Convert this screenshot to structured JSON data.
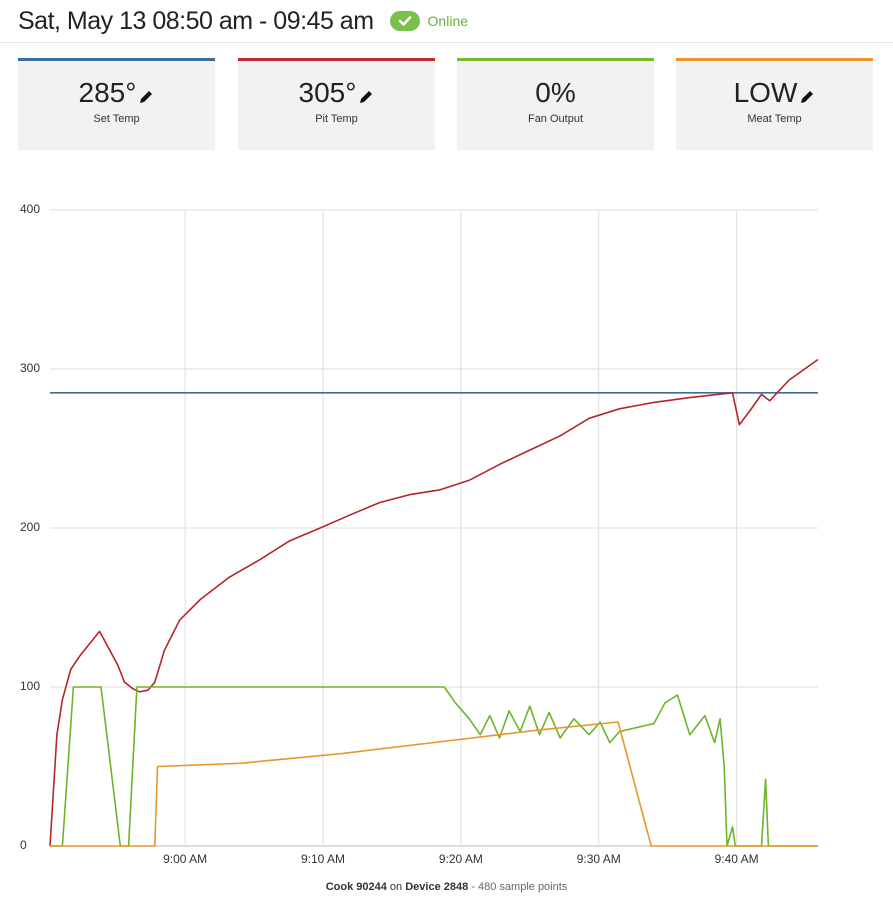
{
  "header": {
    "title": "Sat, May 13 08:50 am - 09:45 am",
    "status": "Online"
  },
  "cards": [
    {
      "value": "285°",
      "label": "Set Temp",
      "color": "#3b6e9c"
    },
    {
      "value": "305°",
      "label": "Pit Temp",
      "color": "#c1272d"
    },
    {
      "value": "0%",
      "label": "Fan Output",
      "color": "#7ab929"
    },
    {
      "value": "LOW",
      "label": "Meat Temp",
      "color": "#e8962b"
    }
  ],
  "chart_data": {
    "type": "line",
    "xlim": [
      530.2,
      585.9
    ],
    "xticks": [
      {
        "value": 540,
        "label": "9:00 AM"
      },
      {
        "value": 550,
        "label": "9:10 AM"
      },
      {
        "value": 560,
        "label": "9:20 AM"
      },
      {
        "value": 570,
        "label": "9:30 AM"
      },
      {
        "value": 580,
        "label": "9:40 AM"
      }
    ],
    "ylim": [
      0,
      400
    ],
    "yticks": [
      0,
      100,
      200,
      300,
      400
    ],
    "grid": true,
    "series": [
      {
        "color": "#3b6e9c",
        "x": [
          530.2,
          585.9
        ],
        "values": [
          285,
          285
        ]
      },
      {
        "color": "#b5262c",
        "x": [
          530.2,
          530.7,
          531.1,
          531.7,
          532.4,
          533.8,
          535.1,
          535.6,
          536.2,
          536.7,
          537.3,
          537.8,
          538.5,
          539.6,
          541.1,
          543.2,
          545.4,
          547.6,
          549.8,
          551.9,
          554.1,
          556.3,
          558.5,
          560.6,
          562.8,
          565.0,
          567.2,
          569.3,
          571.5,
          574.0,
          576.6,
          579.7,
          580.2,
          580.9,
          581.8,
          582.4,
          583.8,
          585.9
        ],
        "values": [
          0,
          70,
          92,
          111,
          120,
          135,
          114,
          103,
          99,
          97,
          98,
          103,
          123,
          142,
          155,
          169,
          180,
          192,
          200,
          208,
          216,
          221,
          224,
          230,
          240,
          249,
          258,
          269,
          275,
          279,
          282,
          285,
          265,
          273,
          284,
          280,
          293,
          306
        ]
      },
      {
        "color": "#6cb52a",
        "x": [
          530.2,
          531.1,
          531.9,
          533.9,
          535.3,
          535.9,
          536.5,
          555.6,
          558.8,
          559.6,
          560.6,
          561.4,
          562.1,
          562.8,
          563.5,
          564.3,
          565.0,
          565.7,
          566.4,
          567.2,
          568.2,
          569.3,
          570.1,
          570.8,
          571.5,
          574.0,
          574.8,
          575.7,
          576.6,
          577.7,
          578.4,
          578.8,
          579.1,
          579.3,
          579.7,
          579.9,
          581.8,
          582.1,
          582.3,
          585.9
        ],
        "values": [
          0,
          0,
          100,
          100,
          0,
          0,
          100,
          100,
          100,
          90,
          80,
          70,
          82,
          68,
          85,
          72,
          88,
          70,
          84,
          68,
          80,
          70,
          78,
          65,
          72,
          77,
          90,
          95,
          70,
          82,
          65,
          80,
          50,
          0,
          12,
          0,
          0,
          42,
          0,
          0
        ]
      },
      {
        "color": "#e8962b",
        "x": [
          530.2,
          537.8,
          538.0,
          544.0,
          551.2,
          559.9,
          565.7,
          571.4,
          573.8,
          585.9
        ],
        "values": [
          0,
          0,
          50,
          52,
          58,
          67,
          73,
          78,
          0,
          0
        ]
      }
    ]
  },
  "footer": {
    "cook": "Cook 90244",
    "on": "on",
    "device": "Device 2848",
    "points": "- 480 sample points"
  }
}
